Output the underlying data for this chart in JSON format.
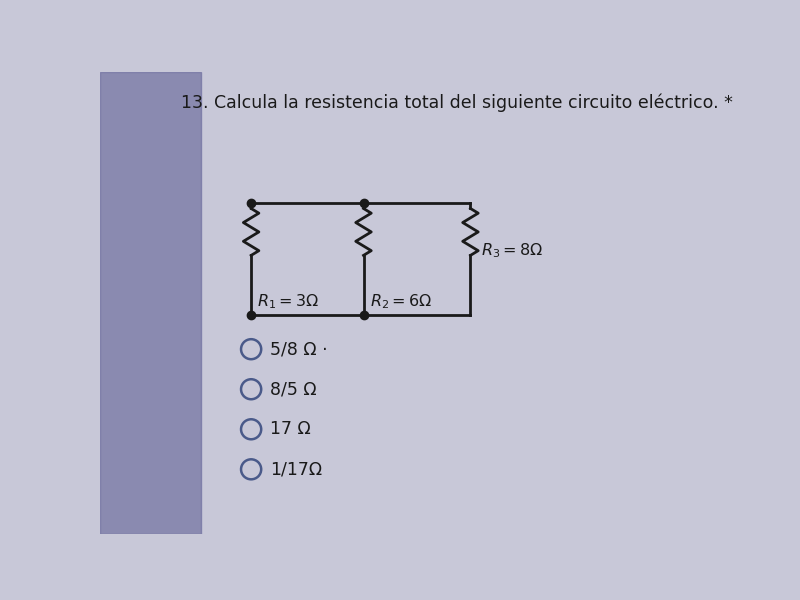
{
  "title": "13. Calcula la resistencia total del siguiente circuito eléctrico. *",
  "title_fontsize": 12.5,
  "bg_color": "#c8c8d8",
  "main_color": "#d0d0d0",
  "left_strip_color": "#7070a0",
  "options": [
    "5/8 Ω ·",
    "8/5 Ω",
    "17 Ω",
    "1/17Ω"
  ],
  "r1_label": "$R_1 = 3\\Omega$",
  "r2_label": "$R_2 = 6\\Omega$",
  "r3_label": "$R_3 = 8\\Omega$",
  "line_color": "#1a1a1a",
  "text_color": "#1a1a1a",
  "radio_color": "#4a5a8a"
}
